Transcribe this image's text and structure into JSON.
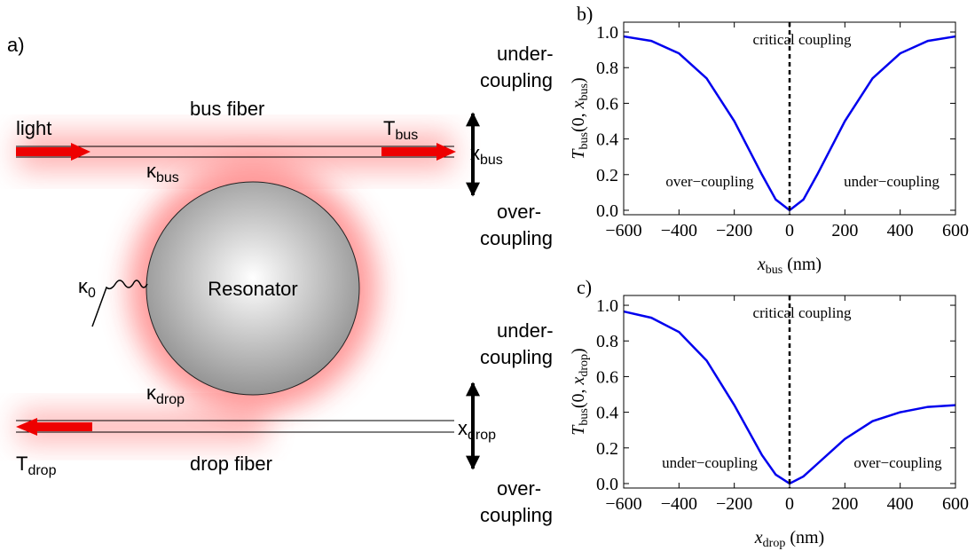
{
  "diagram": {
    "panel_label": "a)",
    "light": "light",
    "bus_fiber": "bus fiber",
    "drop_fiber": "drop fiber",
    "resonator": "Resonator",
    "t_bus": [
      "T",
      "bus"
    ],
    "t_drop": [
      "T",
      "drop"
    ],
    "kappa_bus": [
      "κ",
      "bus"
    ],
    "kappa_drop": [
      "κ",
      "drop"
    ],
    "kappa_0": [
      "κ",
      "0"
    ],
    "x_bus": [
      "x",
      "bus"
    ],
    "x_drop": [
      "x",
      "drop"
    ],
    "bus_up": [
      "under-",
      "coupling"
    ],
    "bus_down": [
      "over-",
      "coupling"
    ],
    "drop_up": [
      "under-",
      "coupling"
    ],
    "drop_down": [
      "over-",
      "coupling"
    ]
  },
  "chart_data": [
    {
      "type": "line",
      "panel_label": "b)",
      "ylabel": [
        "T",
        "bus",
        "(0, ",
        "x",
        "bus",
        ")"
      ],
      "xlabel": [
        "x",
        "bus",
        " (nm)"
      ],
      "x": [
        -600,
        -500,
        -400,
        -300,
        -200,
        -100,
        -50,
        0,
        50,
        100,
        200,
        300,
        400,
        500,
        600
      ],
      "values": [
        0.975,
        0.95,
        0.88,
        0.74,
        0.5,
        0.2,
        0.06,
        0,
        0.06,
        0.2,
        0.5,
        0.74,
        0.88,
        0.95,
        0.975
      ],
      "color": "#0000ee",
      "xlim": [
        -600,
        600
      ],
      "ylim": [
        -0.025,
        1.055
      ],
      "xticks": [
        {
          "value": -600,
          "label": "−600"
        },
        {
          "value": -400,
          "label": "−400"
        },
        {
          "value": -200,
          "label": "−200"
        },
        0,
        200,
        400,
        600
      ],
      "yticks": [
        {
          "value": 0,
          "label": "0.0"
        },
        0.2,
        0.4,
        0.6,
        0.8,
        {
          "value": 1,
          "label": "1.0"
        }
      ],
      "vline": 0,
      "annotations": [
        "critical coupling",
        "over−coupling",
        "under−coupling"
      ]
    },
    {
      "type": "line",
      "panel_label": "c)",
      "ylabel": [
        "T",
        "bus",
        "(0, ",
        "x",
        "drop",
        ")"
      ],
      "xlabel": [
        "x",
        "drop",
        " (nm)"
      ],
      "x": [
        -600,
        -500,
        -400,
        -300,
        -200,
        -100,
        -50,
        0,
        50,
        100,
        200,
        300,
        400,
        500,
        600
      ],
      "values": [
        0.965,
        0.93,
        0.85,
        0.69,
        0.44,
        0.16,
        0.05,
        0,
        0.04,
        0.11,
        0.25,
        0.35,
        0.4,
        0.43,
        0.44
      ],
      "color": "#0000ee",
      "xlim": [
        -600,
        600
      ],
      "ylim": [
        -0.025,
        1.055
      ],
      "xticks": [
        {
          "value": -600,
          "label": "−600"
        },
        {
          "value": -400,
          "label": "−400"
        },
        {
          "value": -200,
          "label": "−200"
        },
        0,
        200,
        400,
        600
      ],
      "yticks": [
        {
          "value": 0,
          "label": "0.0"
        },
        0.2,
        0.4,
        0.6,
        0.8,
        {
          "value": 1,
          "label": "1.0"
        }
      ],
      "vline": 0,
      "annotations": [
        "critical coupling",
        "under−coupling",
        "over−coupling"
      ]
    }
  ]
}
